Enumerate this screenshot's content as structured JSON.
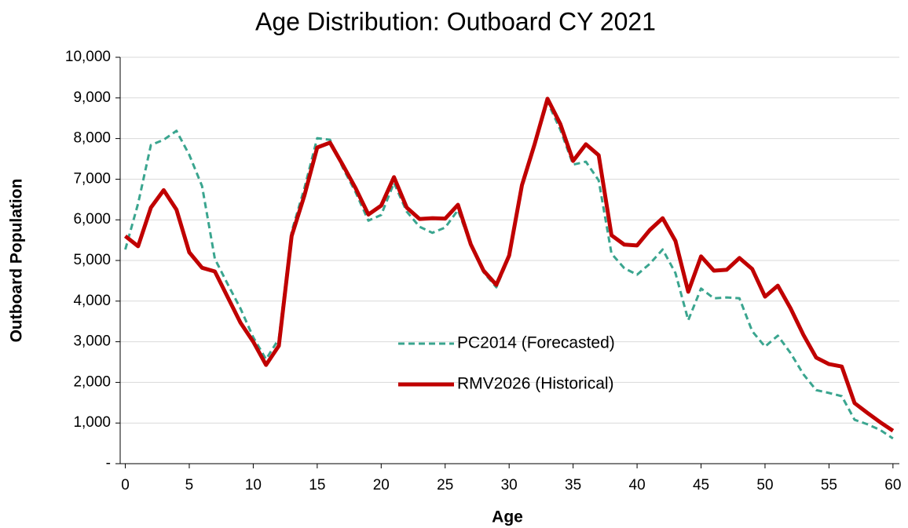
{
  "chart_data": {
    "type": "line",
    "title": "Age Distribution:  Outboard CY 2021",
    "x_label": "Age",
    "y_label": "Outboard Population",
    "x": [
      0,
      1,
      2,
      3,
      4,
      5,
      6,
      7,
      8,
      9,
      10,
      11,
      12,
      13,
      14,
      15,
      16,
      17,
      18,
      19,
      20,
      21,
      22,
      23,
      24,
      25,
      26,
      27,
      28,
      29,
      30,
      31,
      32,
      33,
      34,
      35,
      36,
      37,
      38,
      39,
      40,
      41,
      42,
      43,
      44,
      45,
      46,
      47,
      48,
      49,
      50,
      51,
      52,
      53,
      54,
      55,
      56,
      57,
      58,
      59,
      60
    ],
    "series": [
      {
        "name": "PC2014 (Forecasted)",
        "color": "#3aa58f",
        "style": "dashed",
        "values": [
          5270,
          6400,
          7840,
          7970,
          8190,
          7600,
          6830,
          5040,
          4420,
          3820,
          3110,
          2570,
          3070,
          5710,
          6780,
          8010,
          7970,
          7280,
          6680,
          5980,
          6120,
          6910,
          6200,
          5830,
          5680,
          5810,
          6240,
          5390,
          4710,
          4340,
          5080,
          6780,
          7840,
          8900,
          8220,
          7360,
          7430,
          6970,
          5170,
          4810,
          4650,
          4920,
          5270,
          4690,
          3530,
          4310,
          4070,
          4090,
          4070,
          3260,
          2880,
          3150,
          2720,
          2200,
          1810,
          1740,
          1660,
          1080,
          970,
          830,
          620
        ]
      },
      {
        "name": "RMV2026 (Historical)",
        "color": "#c00000",
        "style": "solid",
        "values": [
          5600,
          5350,
          6300,
          6730,
          6250,
          5200,
          4820,
          4730,
          4100,
          3470,
          3000,
          2430,
          2900,
          5600,
          6600,
          7780,
          7900,
          7350,
          6780,
          6130,
          6350,
          7050,
          6300,
          6020,
          6040,
          6030,
          6370,
          5400,
          4750,
          4400,
          5120,
          6850,
          7870,
          8980,
          8360,
          7450,
          7860,
          7590,
          5620,
          5390,
          5370,
          5750,
          6040,
          5480,
          4230,
          5100,
          4750,
          4770,
          5060,
          4790,
          4110,
          4380,
          3820,
          3170,
          2610,
          2450,
          2390,
          1490,
          1250,
          1020,
          810
        ]
      }
    ],
    "xlim": [
      -0.4,
      60.5
    ],
    "xticks": [
      0,
      5,
      10,
      15,
      20,
      25,
      30,
      35,
      40,
      45,
      50,
      55,
      60
    ],
    "ylim": [
      0,
      10000
    ],
    "yticks": [
      {
        "value": 0,
        "label": "-"
      },
      {
        "value": 1000,
        "label": "1,000"
      },
      {
        "value": 2000,
        "label": "2,000"
      },
      {
        "value": 3000,
        "label": "3,000"
      },
      {
        "value": 4000,
        "label": "4,000"
      },
      {
        "value": 5000,
        "label": "5,000"
      },
      {
        "value": 6000,
        "label": "6,000"
      },
      {
        "value": 7000,
        "label": "7,000"
      },
      {
        "value": 8000,
        "label": "8,000"
      },
      {
        "value": 9000,
        "label": "9,000"
      },
      {
        "value": 10000,
        "label": "10,000"
      }
    ],
    "grid": true
  }
}
